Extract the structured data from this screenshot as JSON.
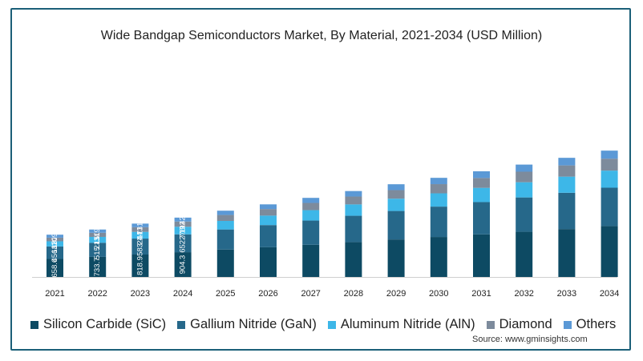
{
  "chart_data": {
    "type": "bar",
    "stacked": true,
    "title": "Wide Bandgap Semiconductors Market, By Material, 2021-2034 (USD Million)",
    "categories": [
      "2021",
      "2022",
      "2023",
      "2024",
      "2025",
      "2026",
      "2027",
      "2028",
      "2029",
      "2030",
      "2031",
      "2032",
      "2033",
      "2034"
    ],
    "series": [
      {
        "name": "Silicon Carbide (SiC)",
        "color": "#0d4a63",
        "values": [
          658.6,
          733.7,
          818.9,
          904.3,
          1000,
          1085,
          1175,
          1275,
          1370,
          1460,
          1555,
          1650,
          1750,
          1860
        ]
      },
      {
        "name": "Gallium Nitride (GaN)",
        "color": "#26688a",
        "values": [
          456.4,
          515.4,
          583.1,
          652.7,
          735,
          810,
          885,
          960,
          1040,
          1110,
          1180,
          1255,
          1325,
          1400
        ]
      },
      {
        "name": "Aluminum Nitride (AlN)",
        "color": "#3db7e8",
        "values": [
          187.2,
          213.6,
          244.1,
          276.0,
          312,
          346,
          380,
          415,
          450,
          485,
          520,
          555,
          590,
          625
        ]
      },
      {
        "name": "Diamond",
        "color": "#7d8b9c",
        "values": [
          132.8,
          150.6,
          171.0,
          192.2,
          217,
          240,
          264,
          288,
          312,
          336,
          360,
          385,
          410,
          435
        ]
      },
      {
        "name": "Others",
        "color": "#5b99d6",
        "values": [
          109.2,
          119.6,
          131.3,
          142.5,
          157,
          171,
          185,
          200,
          215,
          230,
          245,
          260,
          277,
          295
        ]
      }
    ],
    "labeled_categories": 4,
    "legend_position": "bottom",
    "grid": false
  },
  "source": "Source: www.gminsights.com"
}
